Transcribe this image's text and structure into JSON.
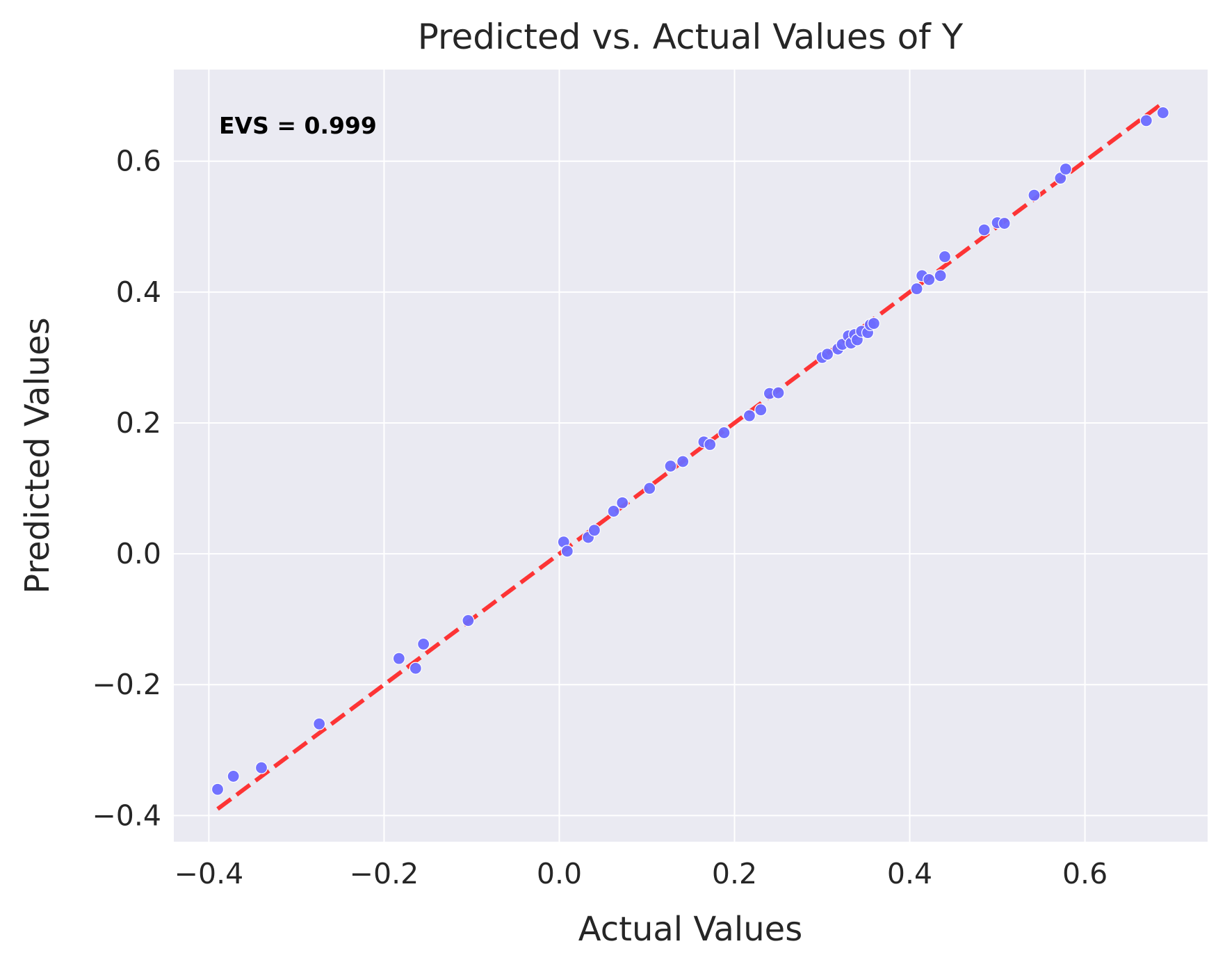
{
  "chart_data": {
    "type": "scatter",
    "title": "Predicted vs. Actual Values of Y",
    "xlabel": "Actual Values",
    "ylabel": "Predicted Values",
    "xlim": [
      -0.44,
      0.74
    ],
    "ylim": [
      -0.44,
      0.74
    ],
    "xticks": [
      -0.4,
      -0.2,
      0.0,
      0.2,
      0.4,
      0.6
    ],
    "yticks": [
      -0.4,
      -0.2,
      0.0,
      0.2,
      0.4,
      0.6
    ],
    "xtick_labels": [
      "−0.4",
      "−0.2",
      "0.0",
      "0.2",
      "0.4",
      "0.6"
    ],
    "ytick_labels": [
      "−0.4",
      "−0.2",
      "0.0",
      "0.2",
      "0.4",
      "0.6"
    ],
    "grid": true,
    "annotation": "EVS = 0.999",
    "reference_line": {
      "from": [
        -0.39,
        -0.39
      ],
      "to": [
        0.69,
        0.69
      ],
      "style": "dashed",
      "color": "#ff2020"
    },
    "colors": {
      "points": "#6b6bff",
      "background": "#eaeaf2",
      "grid": "#ffffff",
      "line": "#ff2020"
    },
    "points": [
      [
        -0.39,
        -0.36
      ],
      [
        -0.372,
        -0.34
      ],
      [
        -0.34,
        -0.327
      ],
      [
        -0.274,
        -0.26
      ],
      [
        -0.183,
        -0.16
      ],
      [
        -0.164,
        -0.175
      ],
      [
        -0.155,
        -0.138
      ],
      [
        -0.104,
        -0.102
      ],
      [
        0.005,
        0.018
      ],
      [
        0.009,
        0.004
      ],
      [
        0.033,
        0.025
      ],
      [
        0.04,
        0.036
      ],
      [
        0.062,
        0.065
      ],
      [
        0.072,
        0.078
      ],
      [
        0.103,
        0.1
      ],
      [
        0.127,
        0.134
      ],
      [
        0.141,
        0.141
      ],
      [
        0.165,
        0.171
      ],
      [
        0.172,
        0.167
      ],
      [
        0.188,
        0.185
      ],
      [
        0.217,
        0.211
      ],
      [
        0.23,
        0.22
      ],
      [
        0.24,
        0.245
      ],
      [
        0.25,
        0.246
      ],
      [
        0.3,
        0.3
      ],
      [
        0.306,
        0.305
      ],
      [
        0.318,
        0.313
      ],
      [
        0.323,
        0.32
      ],
      [
        0.33,
        0.333
      ],
      [
        0.333,
        0.322
      ],
      [
        0.337,
        0.335
      ],
      [
        0.34,
        0.327
      ],
      [
        0.345,
        0.34
      ],
      [
        0.352,
        0.338
      ],
      [
        0.355,
        0.35
      ],
      [
        0.359,
        0.352
      ],
      [
        0.408,
        0.405
      ],
      [
        0.414,
        0.425
      ],
      [
        0.422,
        0.419
      ],
      [
        0.435,
        0.425
      ],
      [
        0.44,
        0.454
      ],
      [
        0.485,
        0.495
      ],
      [
        0.5,
        0.506
      ],
      [
        0.508,
        0.505
      ],
      [
        0.542,
        0.548
      ],
      [
        0.572,
        0.574
      ],
      [
        0.578,
        0.588
      ],
      [
        0.67,
        0.662
      ],
      [
        0.689,
        0.674
      ]
    ]
  }
}
